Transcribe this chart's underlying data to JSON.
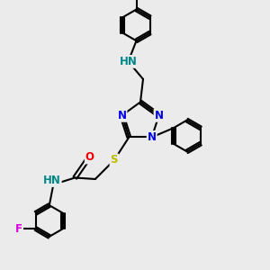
{
  "background_color": "#ebebeb",
  "bond_color": "#000000",
  "bond_width": 1.5,
  "atom_colors": {
    "N": "#0000ee",
    "S": "#bbbb00",
    "O": "#ee0000",
    "F": "#dd00dd",
    "NH": "#008888",
    "C": "#000000"
  },
  "font_size": 8.5,
  "fig_width": 3.0,
  "fig_height": 3.0,
  "dpi": 100
}
